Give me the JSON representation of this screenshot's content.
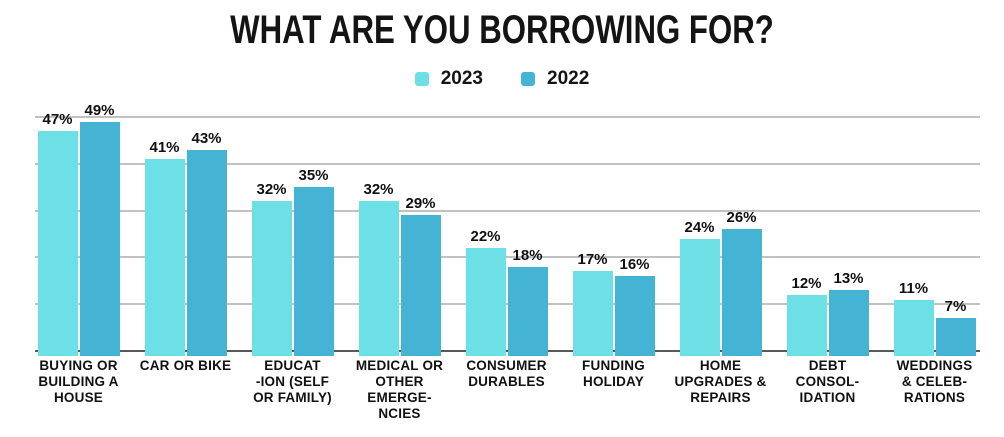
{
  "chart_data": {
    "type": "bar",
    "title": "WHAT ARE YOU BORROWING FOR?",
    "legend_position": "top",
    "value_suffix": "%",
    "ylim": [
      0,
      50
    ],
    "gridline_step": 10,
    "grid": true,
    "xlabel": "",
    "ylabel": "",
    "categories": [
      "BUYING OR\nBUILDING A\nHOUSE",
      "CAR OR BIKE",
      "EDUCAT\n-ION (SELF\nOR FAMILY)",
      "MEDICAL OR\nOTHER\nEMERGE-\nNCIES",
      "CONSUMER\nDURABLES",
      "FUNDING\nHOLIDAY",
      "HOME\nUPGRADES &\nREPAIRS",
      "DEBT\nCONSOL-\nIDATION",
      "WEDDINGS\n& CELEB-\nRATIONS"
    ],
    "series": [
      {
        "name": "2023",
        "color": "#6CE0E5",
        "values": [
          47,
          41,
          32,
          32,
          22,
          17,
          24,
          12,
          11
        ]
      },
      {
        "name": "2022",
        "color": "#45B3D3",
        "values": [
          49,
          43,
          35,
          29,
          18,
          16,
          26,
          13,
          7
        ]
      }
    ],
    "colors": {
      "gridline": "#c1c1c1",
      "axis_line": "#595959",
      "text": "#111111",
      "background": "#ffffff"
    }
  }
}
